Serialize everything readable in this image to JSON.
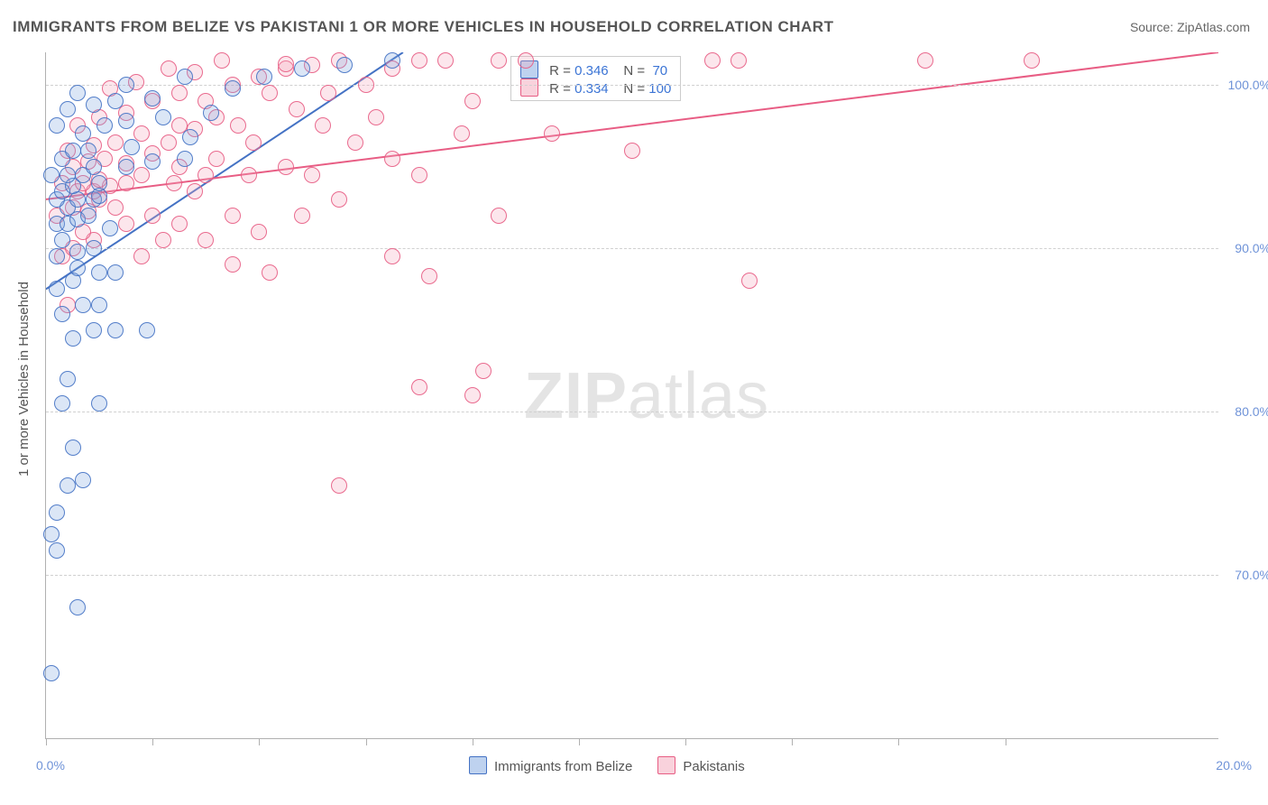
{
  "title": "IMMIGRANTS FROM BELIZE VS PAKISTANI 1 OR MORE VEHICLES IN HOUSEHOLD CORRELATION CHART",
  "source_label": "Source: ZipAtlas.com",
  "watermark": {
    "part1": "ZIP",
    "part2": "atlas"
  },
  "y_axis_title": "1 or more Vehicles in Household",
  "chart": {
    "type": "scatter",
    "background_color": "#ffffff",
    "grid_color": "#d0d0d0",
    "axis_color": "#b0b0b0",
    "label_color": "#6f93d8",
    "label_fontsize": 14,
    "marker_radius": 9,
    "marker_fill_opacity": 0.28,
    "marker_stroke_opacity": 0.9,
    "xlim": [
      0.0,
      22.0
    ],
    "ylim": [
      60.0,
      102.0
    ],
    "x_tick_positions": [
      0,
      2,
      4,
      6,
      8,
      10,
      12,
      14,
      16,
      18
    ],
    "x_label_min": "0.0%",
    "x_label_max": "20.0%",
    "y_ticks": [
      70.0,
      80.0,
      90.0,
      100.0
    ],
    "y_tick_labels": [
      "70.0%",
      "80.0%",
      "90.0%",
      "100.0%"
    ],
    "series": {
      "belize": {
        "label": "Immigrants from Belize",
        "marker_fill": "#7ea6e0",
        "marker_stroke": "#4472c4",
        "R": "0.346",
        "N": "70",
        "trend": {
          "x1": 0.0,
          "y1": 87.5,
          "x2": 6.7,
          "y2": 102.0,
          "width": 2
        },
        "points": [
          [
            0.1,
            64.0
          ],
          [
            0.2,
            71.5
          ],
          [
            0.6,
            68.0
          ],
          [
            0.2,
            73.8
          ],
          [
            0.1,
            72.5
          ],
          [
            0.4,
            75.5
          ],
          [
            0.7,
            75.8
          ],
          [
            0.5,
            77.8
          ],
          [
            0.3,
            80.5
          ],
          [
            1.0,
            80.5
          ],
          [
            0.4,
            82.0
          ],
          [
            0.5,
            84.5
          ],
          [
            0.9,
            85.0
          ],
          [
            1.3,
            85.0
          ],
          [
            1.9,
            85.0
          ],
          [
            0.3,
            86.0
          ],
          [
            0.7,
            86.5
          ],
          [
            1.0,
            86.5
          ],
          [
            0.2,
            87.5
          ],
          [
            0.5,
            88.0
          ],
          [
            0.6,
            88.8
          ],
          [
            1.0,
            88.5
          ],
          [
            1.3,
            88.5
          ],
          [
            0.2,
            89.5
          ],
          [
            0.6,
            89.8
          ],
          [
            0.9,
            90.0
          ],
          [
            0.3,
            90.5
          ],
          [
            0.2,
            91.5
          ],
          [
            0.4,
            91.5
          ],
          [
            0.6,
            91.8
          ],
          [
            1.2,
            91.2
          ],
          [
            0.8,
            92.0
          ],
          [
            0.4,
            92.5
          ],
          [
            0.2,
            93.0
          ],
          [
            0.6,
            93.0
          ],
          [
            0.9,
            93.0
          ],
          [
            1.0,
            93.2
          ],
          [
            0.3,
            93.5
          ],
          [
            0.5,
            93.8
          ],
          [
            1.0,
            94.0
          ],
          [
            0.1,
            94.5
          ],
          [
            0.4,
            94.5
          ],
          [
            0.7,
            94.5
          ],
          [
            0.9,
            95.0
          ],
          [
            1.5,
            95.0
          ],
          [
            2.0,
            95.3
          ],
          [
            2.6,
            95.5
          ],
          [
            0.3,
            95.5
          ],
          [
            0.5,
            96.0
          ],
          [
            0.8,
            96.0
          ],
          [
            1.6,
            96.2
          ],
          [
            2.7,
            96.8
          ],
          [
            0.7,
            97.0
          ],
          [
            1.1,
            97.5
          ],
          [
            1.5,
            97.8
          ],
          [
            2.2,
            98.0
          ],
          [
            3.1,
            98.3
          ],
          [
            0.4,
            98.5
          ],
          [
            0.9,
            98.8
          ],
          [
            1.3,
            99.0
          ],
          [
            2.0,
            99.2
          ],
          [
            0.6,
            99.5
          ],
          [
            1.5,
            100.0
          ],
          [
            2.6,
            100.5
          ],
          [
            4.1,
            100.5
          ],
          [
            4.8,
            101.0
          ],
          [
            5.6,
            101.2
          ],
          [
            6.5,
            101.5
          ],
          [
            3.5,
            99.8
          ],
          [
            0.2,
            97.5
          ]
        ]
      },
      "pakistani": {
        "label": "Pakistanis",
        "marker_fill": "#f4a6b9",
        "marker_stroke": "#e85d84",
        "R": "0.334",
        "N": "100",
        "trend": {
          "x1": 0.0,
          "y1": 93.0,
          "x2": 22.0,
          "y2": 102.0,
          "width": 2
        },
        "points": [
          [
            0.2,
            92.0
          ],
          [
            0.5,
            92.5
          ],
          [
            0.4,
            86.5
          ],
          [
            0.8,
            92.3
          ],
          [
            1.0,
            93.0
          ],
          [
            1.3,
            92.5
          ],
          [
            0.6,
            93.5
          ],
          [
            0.9,
            93.5
          ],
          [
            1.2,
            93.8
          ],
          [
            0.3,
            94.0
          ],
          [
            0.7,
            94.0
          ],
          [
            1.0,
            94.2
          ],
          [
            1.5,
            94.0
          ],
          [
            1.8,
            94.5
          ],
          [
            0.5,
            95.0
          ],
          [
            0.8,
            95.3
          ],
          [
            1.1,
            95.5
          ],
          [
            1.5,
            95.2
          ],
          [
            2.0,
            95.8
          ],
          [
            2.4,
            94.0
          ],
          [
            2.8,
            93.5
          ],
          [
            0.4,
            96.0
          ],
          [
            0.9,
            96.3
          ],
          [
            1.3,
            96.5
          ],
          [
            1.8,
            97.0
          ],
          [
            2.3,
            96.5
          ],
          [
            2.8,
            97.3
          ],
          [
            3.2,
            98.0
          ],
          [
            3.6,
            97.5
          ],
          [
            0.6,
            97.5
          ],
          [
            1.0,
            98.0
          ],
          [
            1.5,
            98.3
          ],
          [
            2.0,
            99.0
          ],
          [
            2.5,
            99.5
          ],
          [
            3.0,
            99.0
          ],
          [
            3.5,
            100.0
          ],
          [
            4.0,
            100.5
          ],
          [
            4.5,
            101.0
          ],
          [
            5.0,
            101.2
          ],
          [
            5.5,
            101.5
          ],
          [
            1.2,
            99.8
          ],
          [
            1.7,
            100.2
          ],
          [
            2.3,
            101.0
          ],
          [
            2.8,
            100.8
          ],
          [
            3.3,
            101.5
          ],
          [
            4.2,
            99.5
          ],
          [
            4.7,
            98.5
          ],
          [
            5.3,
            99.5
          ],
          [
            6.0,
            100.0
          ],
          [
            6.5,
            101.0
          ],
          [
            7.0,
            101.5
          ],
          [
            3.2,
            95.5
          ],
          [
            3.8,
            94.5
          ],
          [
            4.5,
            95.0
          ],
          [
            2.5,
            91.5
          ],
          [
            3.0,
            90.5
          ],
          [
            3.5,
            92.0
          ],
          [
            4.0,
            91.0
          ],
          [
            5.0,
            94.5
          ],
          [
            5.5,
            93.0
          ],
          [
            6.5,
            95.5
          ],
          [
            7.0,
            94.5
          ],
          [
            4.2,
            88.5
          ],
          [
            5.5,
            75.5
          ],
          [
            6.5,
            89.5
          ],
          [
            7.2,
            88.3
          ],
          [
            7.0,
            81.5
          ],
          [
            8.0,
            81.0
          ],
          [
            8.5,
            92.0
          ],
          [
            8.2,
            82.5
          ],
          [
            9.5,
            97.0
          ],
          [
            7.5,
            101.5
          ],
          [
            8.0,
            99.0
          ],
          [
            11.0,
            96.0
          ],
          [
            12.5,
            101.5
          ],
          [
            13.0,
            101.5
          ],
          [
            13.2,
            88.0
          ],
          [
            16.5,
            101.5
          ],
          [
            18.5,
            101.5
          ],
          [
            0.9,
            90.5
          ],
          [
            1.5,
            91.5
          ],
          [
            2.0,
            92.0
          ],
          [
            0.3,
            89.5
          ],
          [
            0.5,
            90.0
          ],
          [
            0.7,
            91.0
          ],
          [
            3.5,
            89.0
          ],
          [
            2.5,
            97.5
          ],
          [
            3.9,
            96.5
          ],
          [
            1.8,
            89.5
          ],
          [
            2.2,
            90.5
          ],
          [
            4.8,
            92.0
          ],
          [
            5.2,
            97.5
          ],
          [
            5.8,
            96.5
          ],
          [
            6.2,
            98.0
          ],
          [
            7.8,
            97.0
          ],
          [
            8.5,
            101.5
          ],
          [
            9.0,
            101.5
          ],
          [
            4.5,
            101.3
          ],
          [
            3.0,
            94.5
          ],
          [
            2.5,
            95.0
          ]
        ]
      }
    }
  },
  "legend_top": {
    "r_label": "R =",
    "n_label": "N ="
  },
  "legend_bottom_labels": {
    "belize": "Immigrants from Belize",
    "pakistani": "Pakistanis"
  }
}
